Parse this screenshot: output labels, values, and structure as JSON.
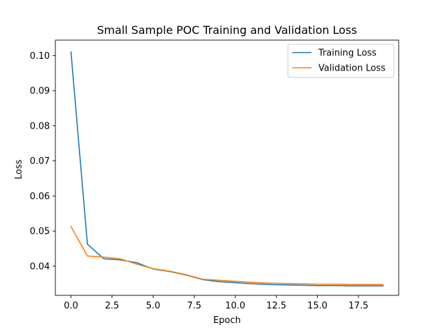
{
  "chart_data": {
    "type": "line",
    "title": "Small Sample POC Training and Validation Loss",
    "xlabel": "Epoch",
    "ylabel": "Loss",
    "xlim": [
      -0.95,
      19.95
    ],
    "ylim": [
      0.0317,
      0.1044
    ],
    "xticks": [
      0.0,
      2.5,
      5.0,
      7.5,
      10.0,
      12.5,
      15.0,
      17.5
    ],
    "xtick_labels": [
      "0.0",
      "2.5",
      "5.0",
      "7.5",
      "10.0",
      "12.5",
      "15.0",
      "17.5"
    ],
    "yticks": [
      0.04,
      0.05,
      0.06,
      0.07,
      0.08,
      0.09,
      0.1
    ],
    "ytick_labels": [
      "0.04",
      "0.05",
      "0.06",
      "0.07",
      "0.08",
      "0.09",
      "0.10"
    ],
    "grid": false,
    "legend_position": "top-right",
    "x": [
      0,
      1,
      2,
      3,
      4,
      5,
      6,
      7,
      8,
      9,
      10,
      11,
      12,
      13,
      14,
      15,
      16,
      17,
      18,
      19
    ],
    "series": [
      {
        "name": "Training Loss",
        "color": "#1f77b4",
        "values": [
          0.101,
          0.0463,
          0.0421,
          0.0418,
          0.041,
          0.0392,
          0.0385,
          0.0375,
          0.0362,
          0.0356,
          0.0353,
          0.035,
          0.0348,
          0.0347,
          0.0346,
          0.0345,
          0.0345,
          0.0344,
          0.0344,
          0.0344
        ]
      },
      {
        "name": "Validation Loss",
        "color": "#ff7f0e",
        "values": [
          0.0513,
          0.0429,
          0.0426,
          0.0421,
          0.0406,
          0.0393,
          0.0386,
          0.0376,
          0.0363,
          0.036,
          0.0357,
          0.0354,
          0.0352,
          0.0351,
          0.035,
          0.0349,
          0.0349,
          0.0348,
          0.0348,
          0.0348
        ]
      }
    ]
  }
}
